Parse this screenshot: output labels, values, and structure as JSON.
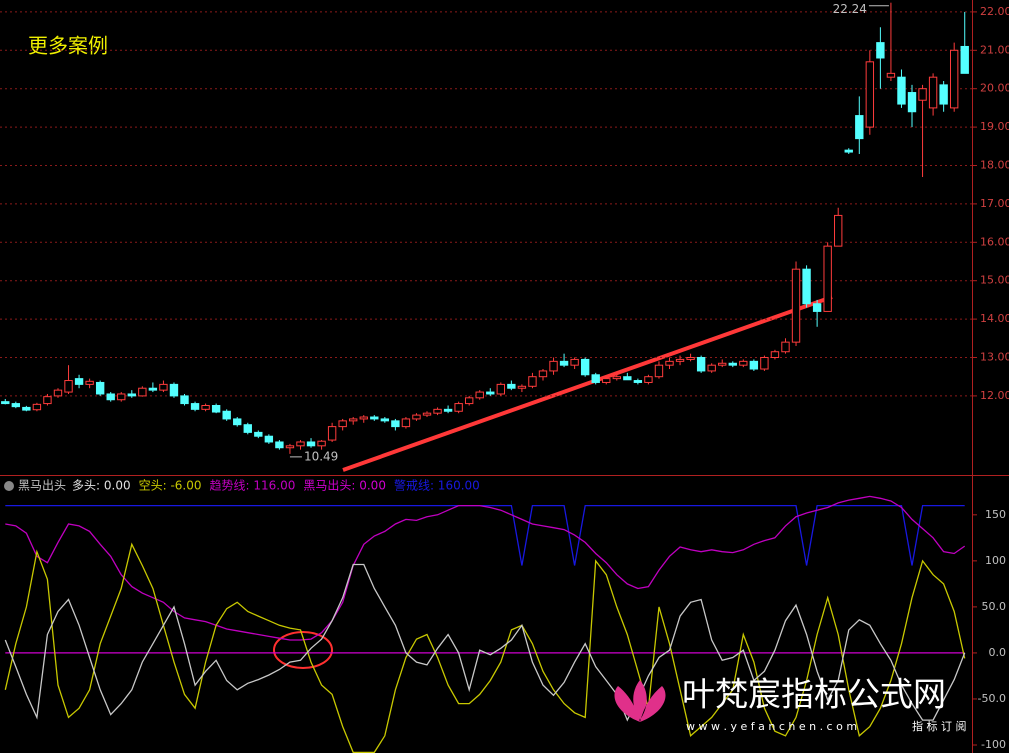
{
  "chart_data": [
    {
      "type": "candlestick",
      "title": "更多案例",
      "ylim": [
        9.94,
        22.31
      ],
      "yticks": [
        {
          "value": 12,
          "label": "12.00"
        },
        {
          "value": 13,
          "label": "13.00"
        },
        {
          "value": 14,
          "label": "14.00"
        },
        {
          "value": 15,
          "label": "15.00"
        },
        {
          "value": 16,
          "label": "16.00"
        },
        {
          "value": 17,
          "label": "17.00"
        },
        {
          "value": 18,
          "label": "18.00"
        },
        {
          "value": 19,
          "label": "19.00"
        },
        {
          "value": 20,
          "label": "20.00"
        },
        {
          "value": 21,
          "label": "21.00"
        },
        {
          "value": 22,
          "label": "22.00"
        }
      ],
      "grid": true,
      "up_color": "#ff3c3c",
      "down_color": "#54ffff",
      "low": 10.49,
      "high": 22.24,
      "ohlc": [
        [
          11.85,
          11.92,
          11.78,
          11.8
        ],
        [
          11.8,
          11.85,
          11.68,
          11.72
        ],
        [
          11.7,
          11.74,
          11.6,
          11.63
        ],
        [
          11.64,
          11.82,
          11.6,
          11.78
        ],
        [
          11.8,
          12.05,
          11.75,
          11.98
        ],
        [
          12.0,
          12.2,
          11.95,
          12.15
        ],
        [
          12.1,
          12.8,
          12.05,
          12.4
        ],
        [
          12.45,
          12.55,
          12.2,
          12.3
        ],
        [
          12.3,
          12.45,
          12.2,
          12.38
        ],
        [
          12.35,
          12.4,
          12.0,
          12.05
        ],
        [
          12.05,
          12.1,
          11.85,
          11.9
        ],
        [
          11.9,
          12.1,
          11.85,
          12.05
        ],
        [
          12.05,
          12.15,
          11.95,
          12.0
        ],
        [
          12.0,
          12.25,
          11.98,
          12.2
        ],
        [
          12.2,
          12.35,
          12.1,
          12.15
        ],
        [
          12.15,
          12.4,
          12.1,
          12.3
        ],
        [
          12.3,
          12.35,
          11.95,
          12.0
        ],
        [
          12.0,
          12.05,
          11.75,
          11.8
        ],
        [
          11.8,
          11.85,
          11.6,
          11.65
        ],
        [
          11.65,
          11.8,
          11.6,
          11.75
        ],
        [
          11.75,
          11.8,
          11.55,
          11.58
        ],
        [
          11.6,
          11.65,
          11.35,
          11.4
        ],
        [
          11.4,
          11.45,
          11.2,
          11.25
        ],
        [
          11.25,
          11.3,
          11.0,
          11.05
        ],
        [
          11.05,
          11.1,
          10.9,
          10.95
        ],
        [
          10.95,
          11.0,
          10.75,
          10.8
        ],
        [
          10.8,
          10.85,
          10.6,
          10.65
        ],
        [
          10.65,
          10.75,
          10.49,
          10.7
        ],
        [
          10.7,
          10.85,
          10.6,
          10.8
        ],
        [
          10.8,
          10.9,
          10.65,
          10.7
        ],
        [
          10.7,
          10.85,
          10.6,
          10.82
        ],
        [
          10.85,
          11.3,
          10.8,
          11.2
        ],
        [
          11.2,
          11.4,
          11.1,
          11.35
        ],
        [
          11.35,
          11.45,
          11.25,
          11.4
        ],
        [
          11.4,
          11.5,
          11.3,
          11.45
        ],
        [
          11.45,
          11.5,
          11.35,
          11.4
        ],
        [
          11.4,
          11.45,
          11.3,
          11.35
        ],
        [
          11.35,
          11.4,
          11.1,
          11.2
        ],
        [
          11.2,
          11.45,
          11.15,
          11.4
        ],
        [
          11.4,
          11.55,
          11.35,
          11.5
        ],
        [
          11.5,
          11.6,
          11.45,
          11.55
        ],
        [
          11.55,
          11.7,
          11.5,
          11.65
        ],
        [
          11.65,
          11.75,
          11.55,
          11.6
        ],
        [
          11.6,
          11.85,
          11.55,
          11.8
        ],
        [
          11.8,
          12.0,
          11.75,
          11.95
        ],
        [
          11.95,
          12.15,
          11.9,
          12.1
        ],
        [
          12.1,
          12.2,
          12.0,
          12.05
        ],
        [
          12.05,
          12.35,
          12.0,
          12.3
        ],
        [
          12.3,
          12.4,
          12.15,
          12.2
        ],
        [
          12.2,
          12.3,
          12.1,
          12.25
        ],
        [
          12.25,
          12.6,
          12.2,
          12.5
        ],
        [
          12.5,
          12.7,
          12.4,
          12.65
        ],
        [
          12.65,
          13.0,
          12.55,
          12.9
        ],
        [
          12.9,
          13.1,
          12.75,
          12.8
        ],
        [
          12.8,
          13.0,
          12.7,
          12.95
        ],
        [
          12.95,
          13.0,
          12.5,
          12.55
        ],
        [
          12.55,
          12.6,
          12.3,
          12.35
        ],
        [
          12.35,
          12.5,
          12.3,
          12.45
        ],
        [
          12.45,
          12.55,
          12.4,
          12.5
        ],
        [
          12.5,
          12.6,
          12.45,
          12.42
        ],
        [
          12.4,
          12.45,
          12.3,
          12.35
        ],
        [
          12.35,
          12.55,
          12.3,
          12.5
        ],
        [
          12.5,
          12.9,
          12.45,
          12.8
        ],
        [
          12.8,
          13.0,
          12.7,
          12.9
        ],
        [
          12.9,
          13.05,
          12.8,
          12.95
        ],
        [
          12.95,
          13.1,
          12.9,
          13.0
        ],
        [
          13.0,
          13.05,
          12.6,
          12.65
        ],
        [
          12.65,
          12.85,
          12.6,
          12.8
        ],
        [
          12.8,
          12.95,
          12.75,
          12.85
        ],
        [
          12.85,
          12.9,
          12.75,
          12.8
        ],
        [
          12.8,
          12.95,
          12.75,
          12.9
        ],
        [
          12.9,
          12.95,
          12.65,
          12.7
        ],
        [
          12.7,
          13.05,
          12.65,
          13.0
        ],
        [
          13.0,
          13.2,
          12.95,
          13.15
        ],
        [
          13.15,
          13.5,
          13.1,
          13.4
        ],
        [
          13.4,
          15.5,
          13.3,
          15.3
        ],
        [
          15.3,
          15.4,
          14.3,
          14.4
        ],
        [
          14.4,
          14.5,
          13.8,
          14.2
        ],
        [
          14.2,
          16.0,
          14.2,
          15.9
        ],
        [
          15.9,
          16.9,
          15.9,
          16.7
        ],
        [
          18.4,
          18.45,
          18.3,
          18.35
        ],
        [
          19.3,
          19.8,
          18.3,
          18.7
        ],
        [
          19.0,
          21.0,
          18.8,
          20.7
        ],
        [
          21.2,
          21.6,
          20.0,
          20.8
        ],
        [
          20.3,
          22.24,
          20.2,
          20.4
        ],
        [
          20.3,
          20.5,
          19.5,
          19.6
        ],
        [
          19.9,
          20.1,
          19.0,
          19.4
        ],
        [
          19.7,
          20.1,
          17.7,
          20.0
        ],
        [
          19.5,
          20.4,
          19.3,
          20.3
        ],
        [
          20.1,
          20.2,
          19.4,
          19.6
        ],
        [
          19.5,
          21.2,
          19.4,
          21.0
        ],
        [
          21.1,
          22.0,
          20.4,
          20.4
        ]
      ]
    },
    {
      "type": "line",
      "title": "黑马出头",
      "ylim": [
        -108.7,
        190
      ],
      "yticks": [
        150,
        100,
        {
          "value": 50,
          "label": "50.0"
        },
        {
          "value": 0,
          "label": "0.0"
        },
        {
          "value": -50,
          "label": "-50.0"
        },
        -100
      ],
      "series": [
        {
          "label": "多头: 0.00",
          "color": "#c8c8c8",
          "values": [
            14,
            -15,
            -45,
            -70,
            20,
            45,
            58,
            30,
            -5,
            -40,
            -67,
            -55,
            -40,
            -10,
            10,
            30,
            50,
            10,
            -35,
            -20,
            -8,
            -30,
            -40,
            -33,
            -29,
            -24,
            -18,
            -10,
            -8,
            5,
            15,
            35,
            60,
            96,
            96,
            70,
            50,
            30,
            0,
            -10,
            -13,
            5,
            20,
            0,
            -40,
            3,
            -2,
            5,
            14,
            30,
            -10,
            -35,
            -46,
            -32,
            -10,
            10,
            -15,
            -30,
            -45,
            -73,
            -50,
            -25,
            -5,
            3,
            40,
            55,
            58,
            14,
            -8,
            -5,
            3,
            -30,
            -20,
            3,
            35,
            52,
            20,
            -20,
            -51,
            -30,
            25,
            36,
            30,
            10,
            -8,
            -35,
            -55,
            -73,
            -73,
            -51,
            -29,
            0
          ]
        },
        {
          "label": "空头: -6.00",
          "color": "#c8c800",
          "values": [
            -40,
            10,
            50,
            110,
            80,
            -35,
            -70,
            -60,
            -40,
            10,
            40,
            70,
            118,
            95,
            70,
            30,
            -10,
            -45,
            -60,
            -10,
            30,
            48,
            55,
            45,
            40,
            35,
            30,
            27,
            25,
            -10,
            -35,
            -45,
            -80,
            -108,
            -108,
            -108,
            -90,
            -40,
            -5,
            15,
            20,
            -5,
            -35,
            -55,
            -55,
            -45,
            -30,
            -10,
            25,
            30,
            10,
            -20,
            -40,
            -55,
            -65,
            -70,
            100,
            85,
            50,
            20,
            -20,
            -60,
            50,
            10,
            -40,
            -90,
            -80,
            -70,
            -55,
            -40,
            20,
            -10,
            -60,
            -85,
            -90,
            -70,
            -30,
            20,
            60,
            20,
            -40,
            -90,
            -80,
            -60,
            -30,
            10,
            60,
            100,
            85,
            75,
            45,
            -6
          ]
        },
        {
          "label": "趋势线: 116.00",
          "color": "#c000c0",
          "values": [
            140,
            138,
            130,
            105,
            98,
            120,
            140,
            138,
            132,
            118,
            105,
            85,
            72,
            65,
            60,
            55,
            45,
            38,
            36,
            34,
            30,
            26,
            24,
            22,
            20,
            18,
            16,
            14,
            14,
            15,
            22,
            35,
            55,
            95,
            118,
            127,
            132,
            140,
            145,
            144,
            148,
            150,
            155,
            160,
            160,
            160,
            158,
            155,
            150,
            145,
            140,
            138,
            136,
            134,
            128,
            120,
            108,
            98,
            85,
            75,
            70,
            72,
            90,
            105,
            115,
            112,
            110,
            112,
            110,
            109,
            112,
            118,
            122,
            125,
            138,
            148,
            152,
            155,
            158,
            163,
            166,
            168,
            170,
            168,
            165,
            158,
            145,
            135,
            125,
            110,
            108,
            116
          ]
        },
        {
          "label": "黑马出头: 0.00",
          "color": "#d000d0",
          "values": [
            0,
            0,
            0,
            0,
            0,
            0,
            0,
            0,
            0,
            0,
            0,
            0,
            0,
            0,
            0,
            0,
            0,
            0,
            0,
            0,
            0,
            0,
            0,
            0,
            0,
            0,
            0,
            0,
            0,
            0,
            0,
            0,
            0,
            0,
            0,
            0,
            0,
            0,
            0,
            0,
            0,
            0,
            0,
            0,
            0,
            0,
            0,
            0,
            0,
            0,
            0,
            0,
            0,
            0,
            0,
            0,
            0,
            0,
            0,
            0,
            0,
            0,
            0,
            0,
            0,
            0,
            0,
            0,
            0,
            0,
            0,
            0,
            0,
            0,
            0,
            0,
            0,
            0,
            0,
            0,
            0,
            0,
            0,
            0,
            0,
            0,
            0,
            0,
            0,
            0,
            0,
            0
          ]
        },
        {
          "label": "警戒线: 160.00",
          "color": "#1818e0",
          "values": [
            160,
            160,
            160,
            160,
            160,
            160,
            160,
            160,
            160,
            160,
            160,
            160,
            160,
            160,
            160,
            160,
            160,
            160,
            160,
            160,
            160,
            160,
            160,
            160,
            160,
            160,
            160,
            160,
            160,
            160,
            160,
            160,
            160,
            160,
            160,
            160,
            160,
            160,
            160,
            160,
            160,
            160,
            160,
            160,
            160,
            160,
            160,
            160,
            160,
            95,
            160,
            160,
            160,
            160,
            95,
            160,
            160,
            160,
            160,
            160,
            160,
            160,
            160,
            160,
            160,
            160,
            160,
            160,
            160,
            160,
            160,
            160,
            160,
            160,
            160,
            160,
            95,
            160,
            160,
            160,
            160,
            160,
            160,
            160,
            160,
            160,
            95,
            160,
            160,
            160,
            160,
            160
          ]
        }
      ]
    }
  ],
  "watermark": {
    "name": "叶梵宸指标公式网",
    "url": "w w w . y e f a n c h e n . c o m",
    "tag": "指 标 订 阅"
  }
}
